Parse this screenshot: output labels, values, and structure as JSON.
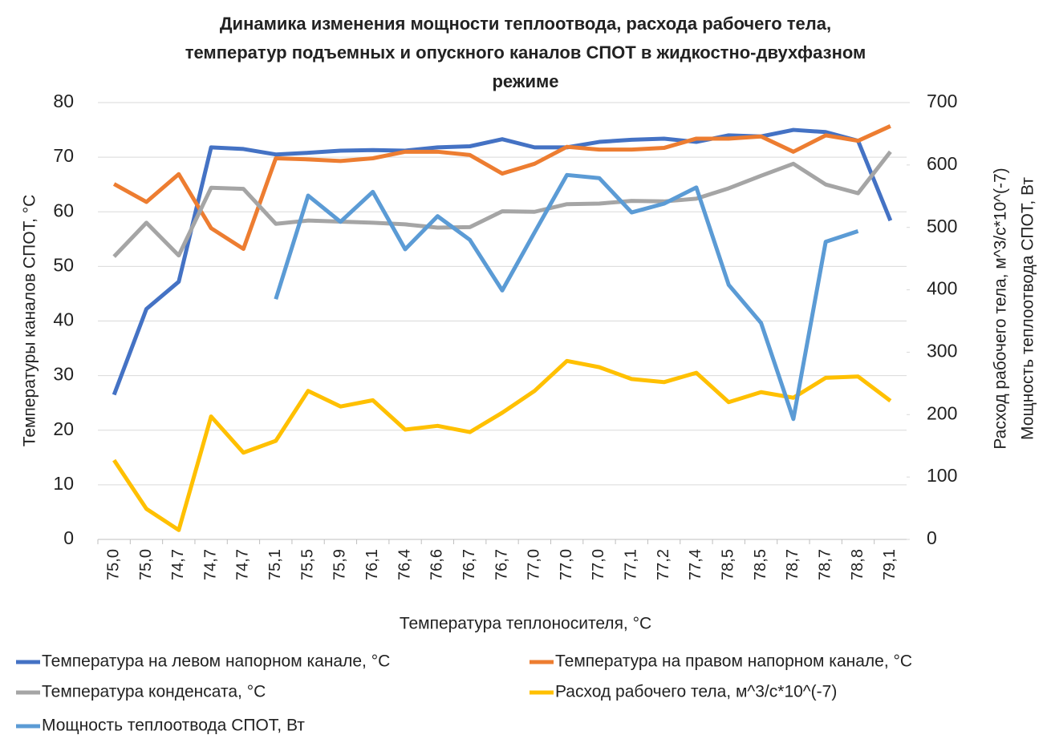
{
  "chart_data": {
    "type": "line",
    "title": [
      "Динамика изменения мощности теплоотвода, расхода рабочего тела,",
      "температур подъемных и опускного каналов СПОТ в жидкостно-двухфазном",
      "режиме"
    ],
    "xlabel": "Температура теплоносителя, °С",
    "ylabel": "Температуры каналов СПОТ, °С",
    "y2label": [
      "Расход рабочего тела, м^3/с*10^(-7)",
      "Мощность теплоотвода СПОТ, Вт"
    ],
    "categories": [
      "75,0",
      "75,0",
      "74,7",
      "74,7",
      "74,7",
      "75,1",
      "75,5",
      "75,9",
      "76,1",
      "76,4",
      "76,6",
      "76,7",
      "76,7",
      "77,0",
      "77,0",
      "77,0",
      "77,1",
      "77,2",
      "77,4",
      "78,5",
      "78,5",
      "78,7",
      "78,7",
      "78,8",
      "79,1"
    ],
    "ylim": [
      0,
      80
    ],
    "yticks": [
      0,
      10,
      20,
      30,
      40,
      50,
      60,
      70,
      80
    ],
    "y2lim": [
      0,
      700
    ],
    "y2ticks": [
      0,
      100,
      200,
      300,
      400,
      500,
      600,
      700
    ],
    "series": [
      {
        "name": "Температура на левом напорном канале, °С",
        "color": "#4472c4",
        "values": [
          26.5,
          42.2,
          47.2,
          71.8,
          71.5,
          70.5,
          70.8,
          71.2,
          71.3,
          71.2,
          71.8,
          72.0,
          73.3,
          71.8,
          71.8,
          72.8,
          73.2,
          73.4,
          72.8,
          74.0,
          73.8,
          75.0,
          74.6,
          73.0,
          58.4
        ]
      },
      {
        "name": "Температура на правом напорном канале, °С",
        "color": "#ed7d31",
        "values": [
          65.1,
          61.8,
          66.9,
          57.0,
          53.2,
          69.8,
          69.6,
          69.3,
          69.8,
          71.0,
          71.0,
          70.4,
          67.0,
          68.8,
          71.9,
          71.4,
          71.4,
          71.7,
          73.4,
          73.4,
          73.8,
          71.0,
          74.0,
          73.0,
          75.7
        ]
      },
      {
        "name": "Температура конденсата, °С",
        "color": "#a5a5a5",
        "values": [
          51.8,
          58.0,
          52.0,
          64.4,
          64.2,
          57.8,
          58.4,
          58.2,
          58.0,
          57.7,
          57.1,
          57.2,
          60.1,
          60.0,
          61.4,
          61.5,
          62.0,
          61.9,
          62.4,
          64.3,
          66.6,
          68.8,
          65.0,
          63.4,
          71.0
        ]
      },
      {
        "name": "Расход рабочего тела, м^3/с*10^(-7)",
        "color": "#ffc000",
        "axis": "y2",
        "values": [
          127,
          49,
          15,
          197,
          139,
          158,
          238,
          213,
          223,
          176,
          182,
          172,
          203,
          238,
          286,
          276,
          257,
          252,
          267,
          220,
          236,
          227,
          259,
          261,
          222
        ]
      },
      {
        "name": "Мощность теплоотвода СПОТ, Вт",
        "color": "#5b9bd5",
        "axis": "y2",
        "values": [
          null,
          null,
          null,
          null,
          null,
          385,
          551,
          509,
          557,
          465,
          518,
          480,
          399,
          492,
          584,
          579,
          524,
          538,
          564,
          408,
          347,
          193,
          477,
          494,
          null
        ]
      }
    ]
  }
}
